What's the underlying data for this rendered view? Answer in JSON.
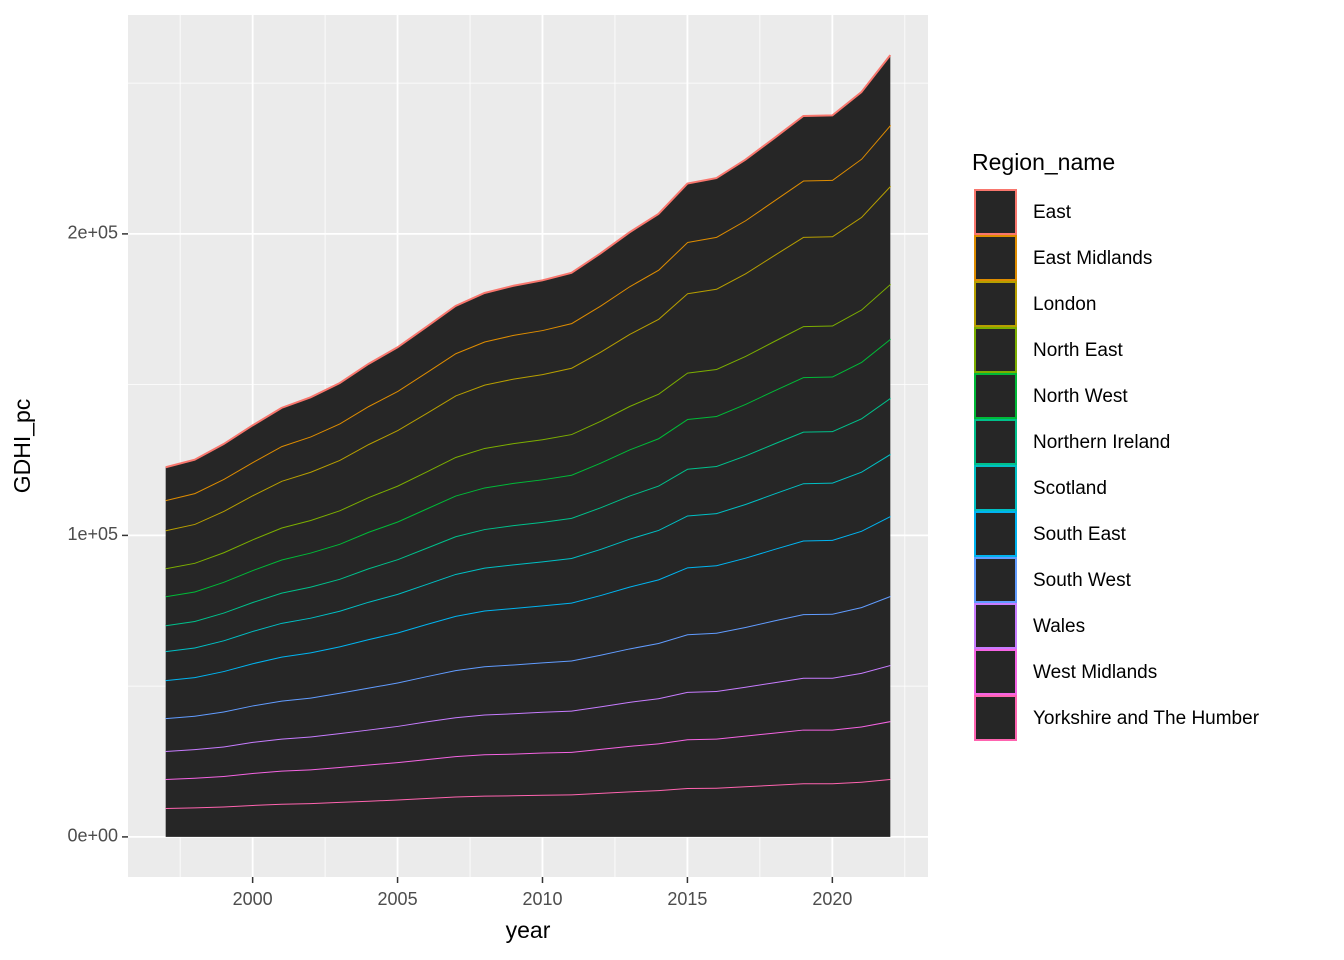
{
  "chart_data": {
    "type": "area",
    "stacked": true,
    "fill": "#262626",
    "x_label": "year",
    "y_label": "GDHI_pc",
    "legend_title": "Region_name",
    "legend_position": "right",
    "grid": true,
    "x": [
      1997,
      1998,
      1999,
      2000,
      2001,
      2002,
      2003,
      2004,
      2005,
      2006,
      2007,
      2008,
      2009,
      2010,
      2011,
      2012,
      2013,
      2014,
      2015,
      2016,
      2017,
      2018,
      2019,
      2020,
      2021,
      2022
    ],
    "xlim": [
      1995.7,
      2023.3
    ],
    "xticks": [
      2000,
      2005,
      2010,
      2015,
      2020
    ],
    "ylim": [
      -13300,
      272600
    ],
    "yticks": [
      {
        "value": 0,
        "label": "0e+00"
      },
      {
        "value": 100000,
        "label": "1e+05"
      },
      {
        "value": 200000,
        "label": "2e+05"
      }
    ],
    "series": [
      {
        "name": "East",
        "color": "#F8766D",
        "values": [
          10900,
          11100,
          11600,
          12200,
          12700,
          13000,
          13400,
          14000,
          14500,
          15100,
          15700,
          16100,
          16300,
          16500,
          16700,
          17300,
          17900,
          18500,
          19400,
          19500,
          20100,
          20700,
          21400,
          21400,
          22100,
          23200
        ]
      },
      {
        "name": "East Midlands",
        "color": "#DE8C00",
        "values": [
          10000,
          10200,
          10600,
          11000,
          11500,
          11700,
          12100,
          12600,
          13000,
          13500,
          14000,
          14300,
          14500,
          14600,
          14800,
          15300,
          15800,
          16300,
          17000,
          17200,
          17600,
          18100,
          18700,
          18700,
          19300,
          20200
        ]
      },
      {
        "name": "London",
        "color": "#B79F00",
        "values": [
          12600,
          12900,
          13700,
          14600,
          15500,
          16000,
          16700,
          17600,
          18400,
          19400,
          20400,
          21000,
          21400,
          21600,
          22000,
          22900,
          23900,
          24800,
          26300,
          26600,
          27400,
          28500,
          29600,
          29600,
          30700,
          32500
        ]
      },
      {
        "name": "North East",
        "color": "#7CAE00",
        "values": [
          9300,
          9500,
          9800,
          10200,
          10600,
          10800,
          11100,
          11500,
          11900,
          12300,
          12800,
          13100,
          13200,
          13300,
          13500,
          13900,
          14400,
          14800,
          15400,
          15600,
          15900,
          16400,
          16900,
          16900,
          17400,
          18200
        ]
      },
      {
        "name": "North West",
        "color": "#00BA38",
        "values": [
          9600,
          9800,
          10200,
          10600,
          11000,
          11300,
          11600,
          12100,
          12500,
          13000,
          13500,
          13800,
          14000,
          14100,
          14300,
          14800,
          15300,
          15700,
          16500,
          16600,
          17100,
          17600,
          18100,
          18100,
          18700,
          19600
        ]
      },
      {
        "name": "Northern Ireland",
        "color": "#00C08B",
        "values": [
          8600,
          8800,
          9200,
          9600,
          10000,
          10300,
          10600,
          11100,
          11500,
          12000,
          12500,
          12800,
          13000,
          13100,
          13300,
          13800,
          14300,
          14700,
          15500,
          15600,
          16100,
          16600,
          17100,
          17100,
          17700,
          18600
        ]
      },
      {
        "name": "Scotland",
        "color": "#00BFC4",
        "values": [
          9600,
          9800,
          10200,
          10700,
          11200,
          11500,
          11800,
          12400,
          12800,
          13300,
          13900,
          14200,
          14500,
          14600,
          14800,
          15300,
          15900,
          16400,
          17200,
          17300,
          17800,
          18400,
          19000,
          19000,
          19600,
          20600
        ]
      },
      {
        "name": "South East",
        "color": "#00B4F0",
        "values": [
          12600,
          12800,
          13400,
          14000,
          14600,
          15000,
          15400,
          16100,
          16600,
          17300,
          18000,
          18500,
          18700,
          18900,
          19200,
          19800,
          20500,
          21100,
          22200,
          22400,
          23000,
          23700,
          24400,
          24500,
          25300,
          26500
        ]
      },
      {
        "name": "South West",
        "color": "#619CFF",
        "values": [
          10900,
          11100,
          11600,
          12100,
          12600,
          12900,
          13400,
          13900,
          14400,
          15000,
          15600,
          16000,
          16200,
          16400,
          16600,
          17100,
          17700,
          18300,
          19100,
          19300,
          19800,
          20500,
          21100,
          21200,
          21800,
          22900
        ]
      },
      {
        "name": "Wales",
        "color": "#C77CFF",
        "values": [
          9300,
          9500,
          9800,
          10300,
          10600,
          10900,
          11200,
          11600,
          12000,
          12500,
          12900,
          13200,
          13400,
          13500,
          13700,
          14100,
          14600,
          15000,
          15700,
          15800,
          16200,
          16700,
          17200,
          17200,
          17800,
          18600
        ]
      },
      {
        "name": "West Midlands",
        "color": "#F564E3",
        "values": [
          9600,
          9800,
          10100,
          10600,
          11000,
          11200,
          11600,
          12000,
          12400,
          12900,
          13400,
          13700,
          13800,
          14000,
          14100,
          14600,
          15100,
          15500,
          16200,
          16300,
          16800,
          17300,
          17800,
          17800,
          18300,
          19200
        ]
      },
      {
        "name": "Yorkshire and The Humber",
        "color": "#FF64B0",
        "values": [
          9600,
          9800,
          10100,
          10600,
          11000,
          11200,
          11600,
          12000,
          12400,
          12900,
          13400,
          13700,
          13800,
          14000,
          14100,
          14600,
          15100,
          15500,
          16200,
          16300,
          16800,
          17300,
          17800,
          17800,
          18300,
          19200
        ]
      }
    ]
  }
}
